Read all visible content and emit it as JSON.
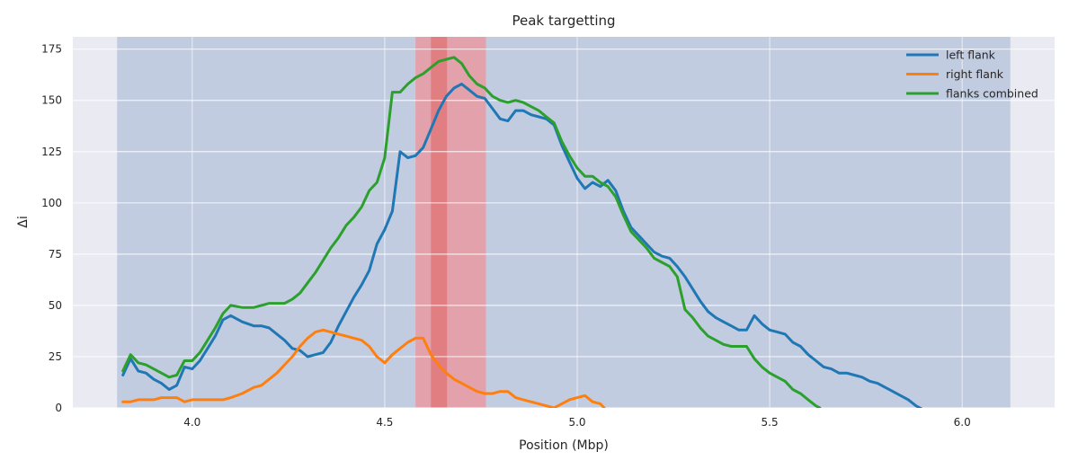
{
  "chart_data": {
    "type": "line",
    "title": "Peak targetting",
    "xlabel": "Position (Mbp)",
    "ylabel": "Δi",
    "xlim": [
      3.69,
      6.24
    ],
    "ylim": [
      0,
      181
    ],
    "xticks": [
      4.0,
      4.5,
      5.0,
      5.5,
      6.0
    ],
    "yticks": [
      0,
      25,
      50,
      75,
      100,
      125,
      150,
      175
    ],
    "xtick_labels": [
      "4.0",
      "4.5",
      "5.0",
      "5.5",
      "6.0"
    ],
    "ytick_labels": [
      "0",
      "25",
      "50",
      "75",
      "100",
      "125",
      "150",
      "175"
    ],
    "grid": true,
    "legend_position": "top-right",
    "shaded_regions": [
      {
        "x0": 3.805,
        "x1": 6.125,
        "color": "#4c72b0",
        "opacity": 0.25
      },
      {
        "x0": 4.58,
        "x1": 4.763,
        "color": "#ff7f7f",
        "opacity": 0.55
      },
      {
        "x0": 4.62,
        "x1": 4.662,
        "color": "#e06060",
        "opacity": 0.55
      }
    ],
    "series": [
      {
        "name": "left flank",
        "color": "#1f77b4",
        "x": [
          3.82,
          3.84,
          3.86,
          3.88,
          3.9,
          3.92,
          3.94,
          3.96,
          3.98,
          4.0,
          4.02,
          4.04,
          4.06,
          4.08,
          4.1,
          4.13,
          4.16,
          4.18,
          4.2,
          4.22,
          4.24,
          4.26,
          4.28,
          4.3,
          4.32,
          4.34,
          4.36,
          4.38,
          4.4,
          4.42,
          4.44,
          4.46,
          4.48,
          4.5,
          4.52,
          4.54,
          4.56,
          4.58,
          4.6,
          4.62,
          4.64,
          4.66,
          4.68,
          4.7,
          4.72,
          4.74,
          4.76,
          4.78,
          4.8,
          4.82,
          4.84,
          4.86,
          4.88,
          4.9,
          4.92,
          4.94,
          4.96,
          4.98,
          5.0,
          5.02,
          5.04,
          5.06,
          5.08,
          5.1,
          5.12,
          5.14,
          5.16,
          5.18,
          5.2,
          5.22,
          5.24,
          5.26,
          5.28,
          5.3,
          5.32,
          5.34,
          5.36,
          5.38,
          5.4,
          5.42,
          5.44,
          5.46,
          5.48,
          5.5,
          5.52,
          5.54,
          5.56,
          5.58,
          5.6,
          5.62,
          5.64,
          5.66,
          5.68,
          5.7,
          5.72,
          5.74,
          5.76,
          5.78,
          5.8,
          5.82,
          5.84,
          5.86,
          5.88,
          5.9
        ],
        "values": [
          16,
          24,
          18,
          17,
          14,
          12,
          9,
          11,
          20,
          19,
          23,
          29,
          35,
          43,
          45,
          42,
          40,
          40,
          39,
          36,
          33,
          29,
          28,
          25,
          26,
          27,
          32,
          40,
          47,
          54,
          60,
          67,
          80,
          87,
          96,
          125,
          122,
          123,
          127,
          136,
          145,
          152,
          156,
          158,
          155,
          152,
          151,
          146,
          141,
          140,
          145,
          145,
          143,
          142,
          141,
          138,
          128,
          120,
          112,
          107,
          110,
          108,
          111,
          106,
          96,
          88,
          84,
          80,
          76,
          74,
          73,
          69,
          64,
          58,
          52,
          47,
          44,
          42,
          40,
          38,
          38,
          45,
          41,
          38,
          37,
          36,
          32,
          30,
          26,
          23,
          20,
          19,
          17,
          17,
          16,
          15,
          13,
          12,
          10,
          8,
          6,
          4,
          1,
          -1
        ]
      },
      {
        "name": "right flank",
        "color": "#ff7f0e",
        "x": [
          3.82,
          3.84,
          3.86,
          3.88,
          3.9,
          3.92,
          3.94,
          3.96,
          3.98,
          4.0,
          4.02,
          4.04,
          4.06,
          4.08,
          4.1,
          4.13,
          4.16,
          4.18,
          4.2,
          4.22,
          4.24,
          4.26,
          4.28,
          4.3,
          4.32,
          4.34,
          4.36,
          4.38,
          4.4,
          4.42,
          4.44,
          4.46,
          4.48,
          4.5,
          4.52,
          4.54,
          4.56,
          4.58,
          4.6,
          4.62,
          4.64,
          4.66,
          4.68,
          4.7,
          4.72,
          4.74,
          4.76,
          4.78,
          4.8,
          4.82,
          4.84,
          4.86,
          4.88,
          4.9,
          4.92,
          4.94,
          4.96,
          4.98,
          5.0,
          5.02,
          5.04,
          5.06,
          5.07
        ],
        "values": [
          3,
          3,
          4,
          4,
          4,
          5,
          5,
          5,
          3,
          4,
          4,
          4,
          4,
          4,
          5,
          7,
          10,
          11,
          14,
          17,
          21,
          25,
          30,
          34,
          37,
          38,
          37,
          36,
          35,
          34,
          33,
          30,
          25,
          22,
          26,
          29,
          32,
          34,
          34,
          26,
          21,
          17,
          14,
          12,
          10,
          8,
          7,
          7,
          8,
          8,
          5,
          4,
          3,
          2,
          1,
          0,
          2,
          4,
          5,
          6,
          3,
          2,
          0
        ]
      },
      {
        "name": "flanks combined",
        "color": "#2ca02c",
        "x": [
          3.82,
          3.84,
          3.86,
          3.88,
          3.9,
          3.92,
          3.94,
          3.96,
          3.98,
          4.0,
          4.02,
          4.04,
          4.06,
          4.08,
          4.1,
          4.13,
          4.16,
          4.18,
          4.2,
          4.22,
          4.24,
          4.26,
          4.28,
          4.3,
          4.32,
          4.34,
          4.36,
          4.38,
          4.4,
          4.42,
          4.44,
          4.46,
          4.48,
          4.5,
          4.52,
          4.54,
          4.56,
          4.58,
          4.6,
          4.62,
          4.64,
          4.66,
          4.68,
          4.7,
          4.72,
          4.74,
          4.76,
          4.78,
          4.8,
          4.82,
          4.84,
          4.86,
          4.88,
          4.9,
          4.92,
          4.94,
          4.96,
          4.98,
          5.0,
          5.02,
          5.04,
          5.06,
          5.08,
          5.1,
          5.12,
          5.14,
          5.16,
          5.18,
          5.2,
          5.22,
          5.24,
          5.26,
          5.28,
          5.3,
          5.32,
          5.34,
          5.36,
          5.38,
          5.4,
          5.42,
          5.44,
          5.46,
          5.48,
          5.5,
          5.52,
          5.54,
          5.56,
          5.58,
          5.6,
          5.62,
          5.63
        ],
        "values": [
          18,
          26,
          22,
          21,
          19,
          17,
          15,
          16,
          23,
          23,
          27,
          33,
          39,
          46,
          50,
          49,
          49,
          50,
          51,
          51,
          51,
          53,
          56,
          61,
          66,
          72,
          78,
          83,
          89,
          93,
          98,
          106,
          110,
          122,
          154,
          154,
          158,
          161,
          163,
          166,
          169,
          170,
          171,
          168,
          162,
          158,
          156,
          152,
          150,
          149,
          150,
          149,
          147,
          145,
          142,
          139,
          130,
          123,
          117,
          113,
          113,
          110,
          108,
          103,
          94,
          86,
          82,
          78,
          73,
          71,
          69,
          64,
          48,
          44,
          39,
          35,
          33,
          31,
          30,
          30,
          30,
          24,
          20,
          17,
          15,
          13,
          9,
          7,
          4,
          1,
          0
        ]
      }
    ]
  }
}
